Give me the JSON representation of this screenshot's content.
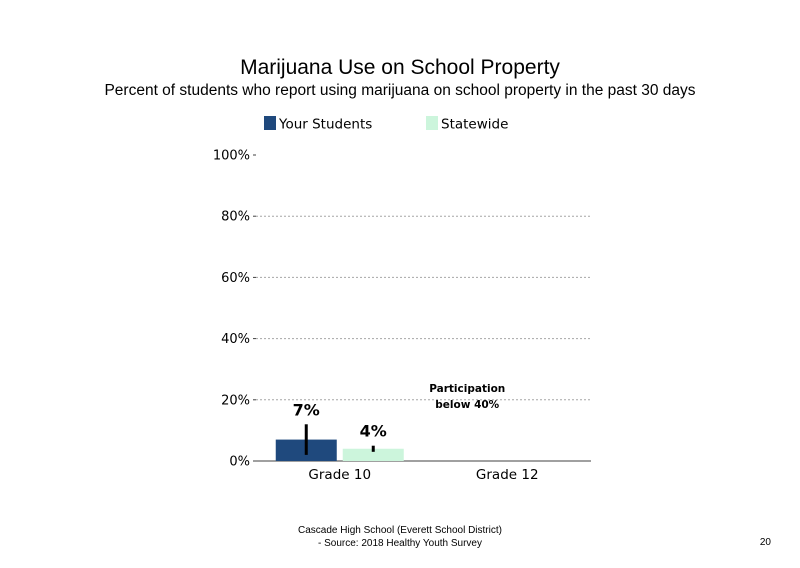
{
  "title": "Marijuana Use on School Property",
  "subtitle": "Percent of students who report using marijuana on school property in the past 30 days",
  "colors": {
    "your_students": "#1f497d",
    "statewide": "#ccf5dc",
    "grid": "#a6a6a6",
    "axis": "#404040",
    "error_bar": "#000000"
  },
  "chart_data": {
    "type": "bar",
    "categories": [
      "Grade 10",
      "Grade 12"
    ],
    "series": [
      {
        "name": "Your Students",
        "values": [
          7,
          null
        ],
        "labels": [
          "7%",
          ""
        ],
        "error_low": [
          2,
          null
        ],
        "error_high": [
          12,
          null
        ]
      },
      {
        "name": "Statewide",
        "values": [
          4,
          null
        ],
        "labels": [
          "4%",
          ""
        ],
        "error_low": [
          3,
          null
        ],
        "error_high": [
          5,
          null
        ]
      }
    ],
    "ylim": [
      0,
      100
    ],
    "yticks": [
      0,
      20,
      40,
      60,
      80,
      100
    ],
    "ytick_labels": [
      "0%",
      "20%",
      "40%",
      "60%",
      "80%",
      "100%"
    ],
    "xlabel": "",
    "ylabel": "",
    "grid": true,
    "legend": "top",
    "annotations": [
      {
        "category": "Grade 12",
        "lines": [
          "Participation",
          "below 40%"
        ]
      }
    ]
  },
  "footer": {
    "line1": "Cascade High School (Everett School District)",
    "line2": "- Source: 2018 Healthy  Youth Survey"
  },
  "page_number": "20"
}
